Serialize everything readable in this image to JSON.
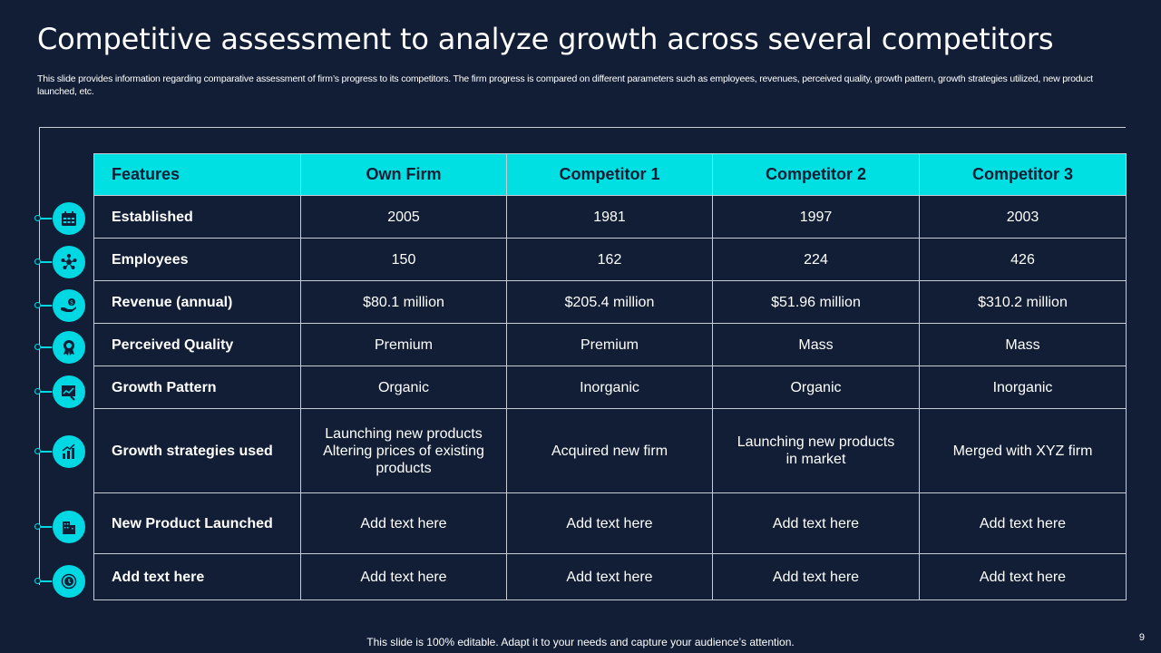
{
  "title": "Competitive assessment to analyze growth across several competitors",
  "subtitle": "This slide provides information regarding comparative assessment of firm’s progress to its competitors. The firm progress is compared on different parameters such as employees, revenues, perceived quality, growth pattern, growth strategies utilized, new product launched, etc.",
  "table": {
    "headers": [
      "Features",
      "Own Firm",
      "Competitor 1",
      "Competitor 2",
      "Competitor 3"
    ],
    "rows": [
      {
        "feature": "Established",
        "icon": "calendar-icon",
        "values": [
          "2005",
          "1981",
          "1997",
          "2003"
        ]
      },
      {
        "feature": "Employees",
        "icon": "team-network-icon",
        "values": [
          "150",
          "162",
          "224",
          "426"
        ]
      },
      {
        "feature": "Revenue (annual)",
        "icon": "money-hand-icon",
        "values": [
          "$80.1 million",
          "$205.4 million",
          "$51.96 million",
          "$310.2 million"
        ]
      },
      {
        "feature": "Perceived Quality",
        "icon": "award-badge-icon",
        "values": [
          "Premium",
          "Premium",
          "Mass",
          "Mass"
        ]
      },
      {
        "feature": "Growth Pattern",
        "icon": "growth-chart-icon",
        "values": [
          "Organic",
          "Inorganic",
          "Organic",
          "Inorganic"
        ]
      },
      {
        "feature": "Growth strategies used",
        "icon": "strategy-chart-icon",
        "values": [
          "Launching new products\nAltering prices of existing products",
          "Acquired new firm",
          "Launching new products in market",
          "Merged with XYZ firm"
        ]
      },
      {
        "feature": "New Product Launched",
        "icon": "building-icon",
        "values": [
          "Add text here",
          "Add text here",
          "Add text here",
          "Add text here"
        ]
      },
      {
        "feature": "Add text here",
        "icon": "clock-icon",
        "values": [
          "Add text here",
          "Add text here",
          "Add text here",
          "Add text here"
        ]
      }
    ]
  },
  "footer": "This slide is 100% editable. Adapt it to your needs and capture your audience’s attention.",
  "page_number": "9",
  "colors": {
    "background": "#111e35",
    "accent": "#00e0e3",
    "border": "#c8ccd4"
  }
}
